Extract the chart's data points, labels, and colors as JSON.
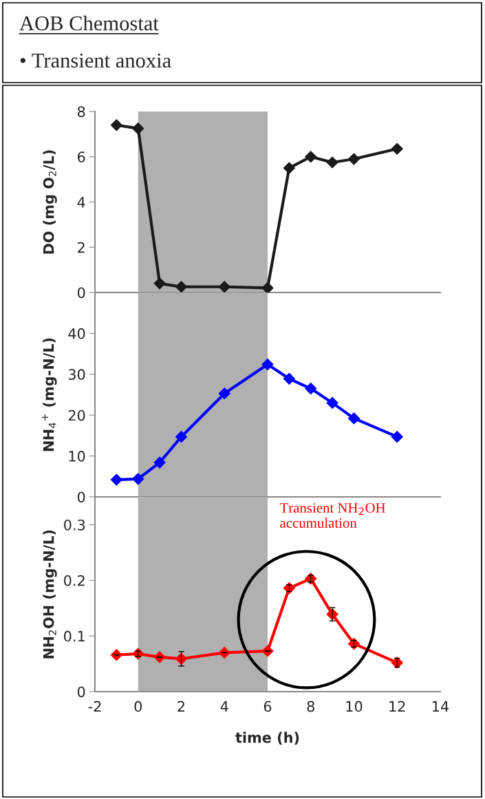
{
  "chart_data": [
    {
      "type": "line",
      "title": "AOB Chemostat",
      "subtitle": "• Transient anoxia",
      "ylabel": "DO (mg O$_{2}$/L)",
      "x": [
        -1,
        0,
        1,
        2,
        4,
        6,
        7,
        8,
        9,
        10,
        12
      ],
      "series": [
        {
          "color": "#1a1a1a",
          "values": [
            7.4,
            7.25,
            0.4,
            0.25,
            0.25,
            0.2,
            5.5,
            6.0,
            5.75,
            5.9,
            6.35
          ]
        }
      ],
      "xlim": [
        -2,
        14
      ],
      "ylim": [
        0,
        8
      ],
      "yticks": [
        0,
        2,
        4,
        6,
        8
      ],
      "tick_labels": "y",
      "marker": "diamond",
      "line_style": "solid",
      "grid": false,
      "bands": [
        {
          "axis": "x",
          "from": 0,
          "to": 6,
          "color": "#b0b0b0"
        }
      ]
    },
    {
      "type": "line",
      "ylabel": "NH$_{4}$$^{+}$ (mg-N/L)",
      "x": [
        -1,
        0,
        1,
        2,
        4,
        6,
        7,
        8,
        9,
        10,
        12
      ],
      "series": [
        {
          "color": "#0000ff",
          "values": [
            4.2,
            4.4,
            8.4,
            14.7,
            25.3,
            32.4,
            28.9,
            26.5,
            23.0,
            19.2,
            14.7
          ]
        }
      ],
      "xlim": [
        -2,
        14
      ],
      "ylim": [
        0,
        50
      ],
      "yticks": [
        0,
        10,
        20,
        30,
        40
      ],
      "tick_labels": "y",
      "marker": "diamond",
      "line_style": "solid",
      "grid": false,
      "bands": [
        {
          "axis": "x",
          "from": 0,
          "to": 6,
          "color": "#b0b0b0"
        }
      ]
    },
    {
      "type": "line",
      "ylabel": "NH$_{2}$OH (mg-N/L)",
      "xlabel": "time (h)",
      "annotations": [
        "Transient NH$_{2}$OH\naccumulation"
      ],
      "x": [
        -1,
        0,
        1,
        2,
        4,
        6,
        7,
        8,
        9,
        10,
        12
      ],
      "series": [
        {
          "color": "#ff0000",
          "values": [
            0.066,
            0.068,
            0.062,
            0.059,
            0.07,
            0.073,
            0.186,
            0.203,
            0.139,
            0.086,
            0.052
          ],
          "errors": [
            null,
            0.005,
            null,
            0.013,
            null,
            null,
            0.006,
            0.006,
            0.012,
            0.006,
            0.008
          ]
        }
      ],
      "xlim": [
        -2,
        14
      ],
      "xticks": [
        -2,
        0,
        2,
        4,
        6,
        8,
        10,
        12,
        14
      ],
      "ylim": [
        0,
        0.35
      ],
      "yticks": [
        0,
        0.1,
        0.2,
        0.3
      ],
      "marker": "diamond",
      "line_style": "solid",
      "grid": false,
      "bands": [
        {
          "axis": "x",
          "from": 0,
          "to": 6,
          "color": "#b0b0b0"
        }
      ]
    }
  ]
}
